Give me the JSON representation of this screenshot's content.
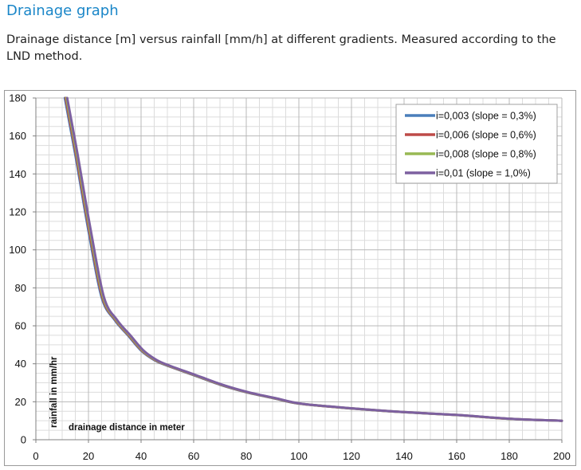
{
  "page": {
    "title": "Drainage graph",
    "description": "Drainage distance [m] versus rainfall [mm/h] at different gradients. Measured according to the LND method."
  },
  "chart_data": {
    "type": "line",
    "title": "",
    "xlabel": "drainage distance in meter",
    "ylabel": "rainfall in mm/hr",
    "xlim": [
      0,
      200
    ],
    "ylim": [
      0,
      180
    ],
    "x_ticks": [
      0,
      20,
      40,
      60,
      80,
      100,
      120,
      140,
      160,
      180,
      200
    ],
    "y_ticks": [
      0,
      20,
      40,
      60,
      80,
      100,
      120,
      140,
      160,
      180
    ],
    "grid": true,
    "legend_position": "top-right",
    "series": [
      {
        "name": "i=0,003 (slope = 0,3%)",
        "color": "#4a7ebb",
        "points": [
          [
            11,
            180
          ],
          [
            15,
            150
          ],
          [
            20,
            110
          ],
          [
            25,
            75
          ],
          [
            30,
            63
          ],
          [
            35,
            55
          ],
          [
            40,
            47
          ],
          [
            45,
            42
          ],
          [
            50,
            39
          ],
          [
            60,
            34
          ],
          [
            70,
            29
          ],
          [
            80,
            25
          ],
          [
            90,
            22
          ],
          [
            100,
            19
          ],
          [
            120,
            16.5
          ],
          [
            140,
            14.5
          ],
          [
            160,
            13
          ],
          [
            180,
            11
          ],
          [
            200,
            10
          ]
        ]
      },
      {
        "name": "i=0,006 (slope = 0,6%)",
        "color": "#be4b48",
        "points": [
          [
            11.3,
            180
          ],
          [
            15.3,
            150
          ],
          [
            20.3,
            110
          ],
          [
            25.3,
            75
          ],
          [
            30.3,
            63
          ],
          [
            35.3,
            55
          ],
          [
            40.3,
            47
          ],
          [
            45.3,
            42
          ],
          [
            50.3,
            39
          ],
          [
            60.3,
            34
          ],
          [
            70.3,
            29
          ],
          [
            80.3,
            25
          ],
          [
            90.3,
            22
          ],
          [
            100.3,
            19
          ],
          [
            120.3,
            16.5
          ],
          [
            140.3,
            14.5
          ],
          [
            160.3,
            13
          ],
          [
            180.3,
            11
          ],
          [
            200,
            10
          ]
        ]
      },
      {
        "name": "i=0,008 (slope = 0,8%)",
        "color": "#98b954",
        "points": [
          [
            11.6,
            180
          ],
          [
            15.6,
            150
          ],
          [
            20.6,
            110
          ],
          [
            25.6,
            75
          ],
          [
            30.6,
            63
          ],
          [
            35.6,
            55
          ],
          [
            40.6,
            47
          ],
          [
            45.6,
            42
          ],
          [
            50.6,
            39
          ],
          [
            60.6,
            34
          ],
          [
            70.6,
            29
          ],
          [
            80.6,
            25
          ],
          [
            90.6,
            22
          ],
          [
            100.6,
            19
          ],
          [
            120.6,
            16.5
          ],
          [
            140.6,
            14.5
          ],
          [
            160.6,
            13
          ],
          [
            180.6,
            11
          ],
          [
            200,
            10
          ]
        ]
      },
      {
        "name": "i=0,01 (slope = 1,0%)",
        "color": "#7d60a0",
        "points": [
          [
            11.9,
            180
          ],
          [
            15.9,
            150
          ],
          [
            20.9,
            110
          ],
          [
            25.9,
            75
          ],
          [
            30.9,
            63
          ],
          [
            35.9,
            55
          ],
          [
            40.9,
            47
          ],
          [
            45.9,
            42
          ],
          [
            50.9,
            39
          ],
          [
            60.9,
            34
          ],
          [
            70.9,
            29
          ],
          [
            80.9,
            25
          ],
          [
            90.9,
            22
          ],
          [
            100.9,
            19
          ],
          [
            120.9,
            16.5
          ],
          [
            140.9,
            14.5
          ],
          [
            160.9,
            13
          ],
          [
            180.9,
            11
          ],
          [
            200,
            10
          ]
        ]
      }
    ]
  }
}
